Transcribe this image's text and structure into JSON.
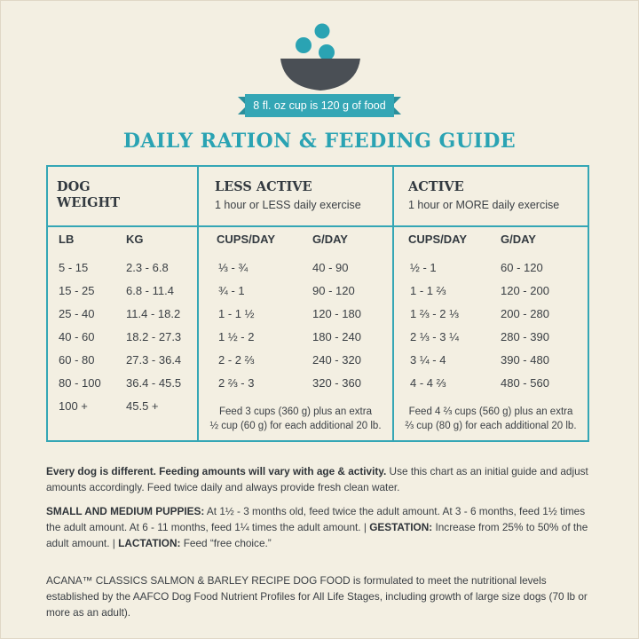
{
  "colors": {
    "teal": "#34a6b5",
    "title_teal": "#2aa3b3",
    "bowl_gray": "#4a4f55",
    "background": "#f3efe2"
  },
  "icons": {
    "header_graphic": "food-bowl-icon"
  },
  "ribbon_text": "8 fl. oz cup is 120 g of food",
  "title": "DAILY RATION & FEEDING GUIDE",
  "table": {
    "headers": {
      "dog_weight_line1": "DOG",
      "dog_weight_line2": "WEIGHT",
      "less_active": "LESS ACTIVE",
      "less_active_sub": "1 hour or LESS daily exercise",
      "active": "ACTIVE",
      "active_sub": "1 hour or MORE daily exercise"
    },
    "columns": {
      "lb": "LB",
      "kg": "KG",
      "la_cups": "CUPS/DAY",
      "la_g": "G/DAY",
      "a_cups": "CUPS/DAY",
      "a_g": "G/DAY"
    },
    "rows": [
      {
        "lb": "5 - 15",
        "kg": "2.3 - 6.8",
        "la_cups": "⅓ - ¾",
        "la_g": "40 - 90",
        "a_cups": "½ - 1",
        "a_g": "60 - 120"
      },
      {
        "lb": "15 - 25",
        "kg": "6.8 - 11.4",
        "la_cups": "¾ - 1",
        "la_g": "90 - 120",
        "a_cups": "1 - 1 ⅔",
        "a_g": "120 - 200"
      },
      {
        "lb": "25 - 40",
        "kg": "11.4 - 18.2",
        "la_cups": "1 - 1 ½",
        "la_g": "120 - 180",
        "a_cups": "1 ⅔ - 2 ⅓",
        "a_g": "200 - 280"
      },
      {
        "lb": "40 - 60",
        "kg": "18.2 - 27.3",
        "la_cups": "1 ½ - 2",
        "la_g": "180 - 240",
        "a_cups": "2 ⅓ - 3 ¼",
        "a_g": "280 - 390"
      },
      {
        "lb": "60 - 80",
        "kg": "27.3 - 36.4",
        "la_cups": "2 - 2 ⅔",
        "la_g": "240 - 320",
        "a_cups": "3 ¼ - 4",
        "a_g": "390 - 480"
      },
      {
        "lb": "80 - 100",
        "kg": "36.4 - 45.5",
        "la_cups": "2 ⅔ - 3",
        "la_g": "320 - 360",
        "a_cups": "4 - 4 ⅔",
        "a_g": "480 - 560"
      },
      {
        "lb": "100 +",
        "kg": "45.5 +"
      }
    ],
    "less_active_note_line1": "Feed 3 cups (360 g) plus an extra",
    "less_active_note_line2": "½ cup (60 g) for each additional 20 lb.",
    "active_note_line1": "Feed 4 ⅔ cups (560 g) plus an extra",
    "active_note_line2": "⅔ cup (80 g) for each additional 20 lb."
  },
  "notes": {
    "p1_bold": "Every dog is different. Feeding amounts will vary with age & activity.",
    "p1_text": " Use this chart as an initial guide and adjust amounts accordingly. Feed twice daily and always provide fresh clean water.",
    "p2_bold1": "SMALL AND MEDIUM PUPPIES:",
    "p2_text1": " At 1½ - 3 months old, feed twice the adult amount. At 3 - 6 months, feed 1½ times the adult amount. At 6 - 11 months, feed 1¼ times the adult amount. | ",
    "p2_bold2": "GESTATION:",
    "p2_text2": " Increase from 25% to 50% of the adult amount. | ",
    "p2_bold3": "LACTATION:",
    "p2_text3": " Feed “free choice.”",
    "p3_text": "ACANA™ CLASSICS SALMON & BARLEY RECIPE DOG FOOD is formulated to meet the nutritional levels established by the AAFCO Dog Food Nutrient Profiles for All Life Stages, including growth of large size dogs (70 lb or more as an adult)."
  }
}
